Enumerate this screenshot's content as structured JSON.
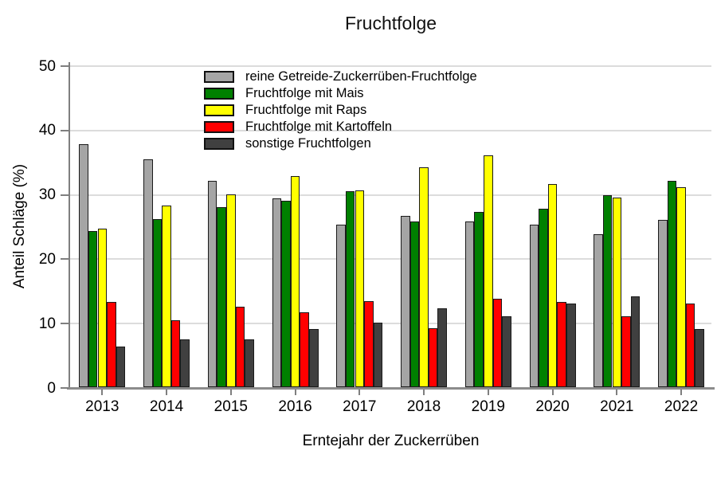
{
  "title": "Fruchtfolge",
  "chart_data": {
    "type": "bar",
    "title": "Fruchtfolge",
    "xlabel": "Erntejahr der Zuckerrüben",
    "ylabel": "Anteil Schläge (%)",
    "ylim": [
      0,
      50
    ],
    "yticks": [
      0,
      10,
      20,
      30,
      40,
      50
    ],
    "grid": true,
    "legend_position": "top-center-inside",
    "categories": [
      "2013",
      "2014",
      "2015",
      "2016",
      "2017",
      "2018",
      "2019",
      "2020",
      "2021",
      "2022"
    ],
    "series": [
      {
        "name": "reine Getreide-Zuckerrüben-Fruchtfolge",
        "color": "#a5a5a5",
        "values": [
          37.8,
          35.4,
          32.0,
          29.3,
          25.2,
          26.6,
          25.7,
          25.2,
          23.8,
          26.0
        ]
      },
      {
        "name": "Fruchtfolge mit Mais",
        "color": "#008000",
        "values": [
          24.3,
          26.1,
          28.0,
          29.0,
          30.4,
          25.7,
          27.2,
          27.7,
          29.8,
          32.0
        ]
      },
      {
        "name": "Fruchtfolge mit Raps",
        "color": "#ffff00",
        "values": [
          24.6,
          28.2,
          30.0,
          32.8,
          30.6,
          34.2,
          36.0,
          31.5,
          29.5,
          31.1
        ]
      },
      {
        "name": "Fruchtfolge mit Kartoffeln",
        "color": "#ff0000",
        "values": [
          13.2,
          10.4,
          12.5,
          11.6,
          13.4,
          9.1,
          13.8,
          13.2,
          11.0,
          13.0
        ]
      },
      {
        "name": "sonstige Fruchtfolgen",
        "color": "#404040",
        "values": [
          6.3,
          7.4,
          7.4,
          9.0,
          10.0,
          12.3,
          11.0,
          13.0,
          14.1,
          9.0
        ]
      }
    ],
    "colors": {
      "axis": "#7f7f7f",
      "gridline": "#dcdcdc",
      "bar_border": "#1a1a1a",
      "text": "#000000"
    }
  }
}
